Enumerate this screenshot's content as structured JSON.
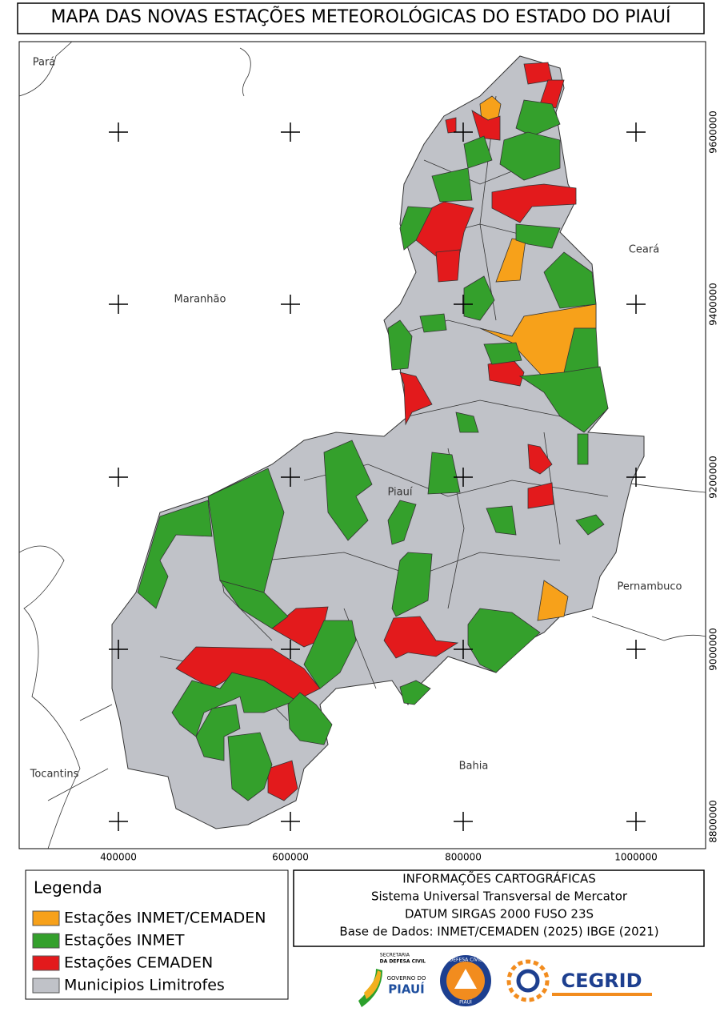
{
  "title": "MAPA DAS NOVAS ESTAÇÕES METEOROLÓGICAS DO ESTADO DO PIAUÍ",
  "map": {
    "regions": [
      "Pará",
      "Maranhão",
      "Ceará",
      "Piauí",
      "Pernambuco",
      "Tocantins",
      "Bahia"
    ],
    "x_ticks": [
      "400000",
      "600000",
      "800000",
      "1000000"
    ],
    "y_ticks": [
      "9600000",
      "9400000",
      "9200000",
      "9000000",
      "8800000"
    ]
  },
  "legend": {
    "title": "Legenda",
    "items": [
      {
        "label": "Estações INMET/CEMADEN",
        "color": "#f7a11a"
      },
      {
        "label": "Estações INMET",
        "color": "#34a02c"
      },
      {
        "label": "Estações CEMADEN",
        "color": "#e31a1c"
      },
      {
        "label": "Municipios Limitrofes",
        "color": "#c0c2c8"
      }
    ]
  },
  "info": {
    "title": "INFORMAÇÕES CARTOGRÁFICAS",
    "lines": [
      "Sistema Universal Transversal de Mercator",
      "DATUM SIRGAS 2000 FUSO 23S",
      "Base de Dados: INMET/CEMADEN (2025) IBGE (2021)"
    ]
  },
  "logos": {
    "secretaria": "SECRETARIA",
    "defesa": "DA DEFESA CIVIL",
    "governo": "GOVERNO DO",
    "piaui": "PIAUÍ",
    "badge_top": "DEFESA CIVIL",
    "badge_bottom": "PIAUÍ",
    "cegrid": "CEGRID"
  }
}
